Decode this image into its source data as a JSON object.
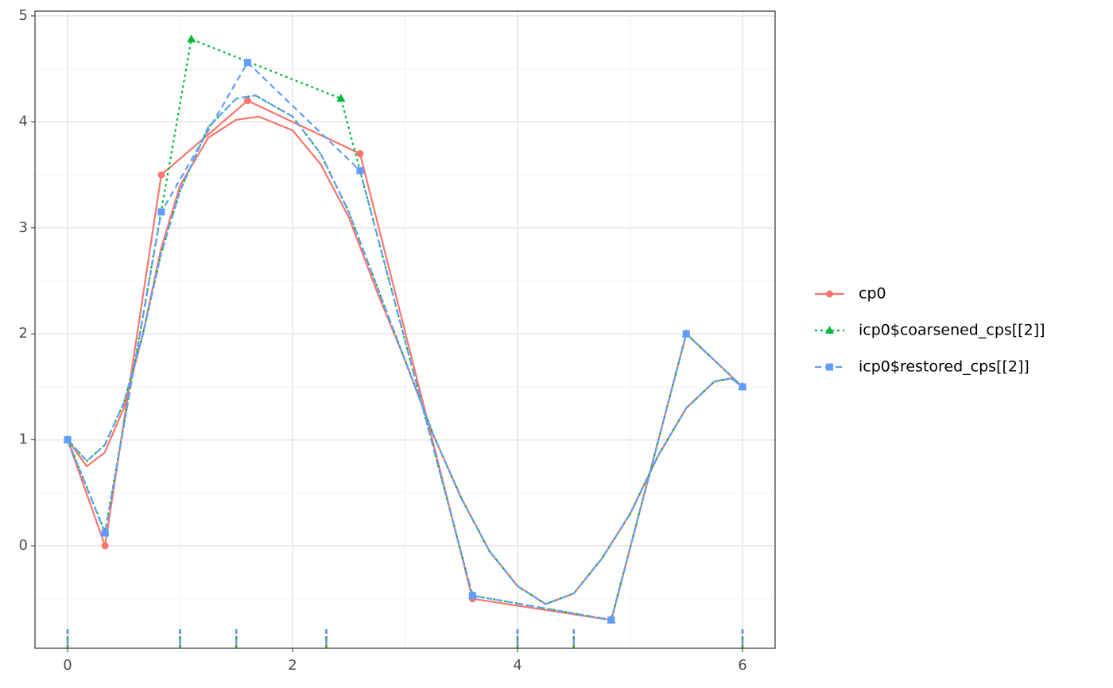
{
  "chart_data": {
    "type": "line",
    "xlim": [
      -0.29,
      6.29
    ],
    "ylim": [
      -0.967,
      5.045
    ],
    "xticks": [
      0,
      2,
      4,
      6
    ],
    "yticks": [
      0,
      1,
      2,
      3,
      4,
      5
    ],
    "minor_xticks": [
      1,
      3,
      5
    ],
    "minor_yticks": [
      -0.5,
      0.5,
      1.5,
      2.5,
      3.5,
      4.5
    ],
    "grid": true,
    "legend": "right",
    "series": [
      {
        "name": "cp0",
        "color": "#f8766d",
        "dash": "solid",
        "marker": "circle",
        "x": [
          0,
          0.333,
          0.833,
          1.6,
          2.6,
          3.6,
          4.833,
          5.5,
          6
        ],
        "values": [
          1,
          0,
          3.5,
          4.2,
          3.7,
          -0.5,
          -0.7,
          2,
          1.5
        ],
        "curve_x": [
          0,
          0.17,
          0.33,
          0.5,
          0.67,
          0.83,
          1.0,
          1.25,
          1.5,
          1.7,
          2.0,
          2.25,
          2.5,
          2.75,
          3.0,
          3.25,
          3.5,
          3.75,
          4.0,
          4.25,
          4.5,
          4.75,
          5.0,
          5.25,
          5.5,
          5.75,
          5.9,
          6
        ],
        "curve_values": [
          1,
          0.75,
          0.88,
          1.3,
          2.0,
          2.8,
          3.4,
          3.85,
          4.02,
          4.05,
          3.92,
          3.6,
          3.1,
          2.4,
          1.75,
          1.05,
          0.45,
          -0.05,
          -0.38,
          -0.55,
          -0.45,
          -0.12,
          0.3,
          0.85,
          1.3,
          1.55,
          1.58,
          1.5
        ],
        "knots": [
          0,
          1,
          1.5,
          2.3,
          4,
          4.5,
          6
        ]
      },
      {
        "name": "icp0$coarsened_cps[[2]]",
        "color": "#00ba38",
        "dash": "dotted",
        "marker": "triangle",
        "x": [
          0,
          0.333,
          1.1,
          2.43,
          3.6,
          4.833,
          5.5,
          6
        ],
        "values": [
          1,
          0.13,
          4.78,
          4.22,
          -0.47,
          -0.7,
          2,
          1.5
        ],
        "curve_x": [
          0,
          0.17,
          0.33,
          0.5,
          0.67,
          0.83,
          1.0,
          1.25,
          1.5,
          1.67,
          2.0,
          2.25,
          2.5,
          2.75,
          3.0,
          3.25,
          3.5,
          3.75,
          4.0,
          4.25,
          4.5,
          4.75,
          5.0,
          5.25,
          5.5,
          5.75,
          5.9,
          6
        ],
        "curve_values": [
          1,
          0.8,
          0.95,
          1.35,
          2.0,
          2.75,
          3.35,
          3.95,
          4.22,
          4.25,
          4.05,
          3.7,
          3.15,
          2.45,
          1.75,
          1.05,
          0.45,
          -0.05,
          -0.38,
          -0.55,
          -0.45,
          -0.12,
          0.3,
          0.85,
          1.3,
          1.55,
          1.58,
          1.5
        ],
        "knots": [
          0,
          1,
          1.5,
          2.3,
          4,
          4.5,
          6
        ]
      },
      {
        "name": "icp0$restored_cps[[2]]",
        "color": "#619cff",
        "dash": "dashed",
        "marker": "square",
        "x": [
          0,
          0.333,
          0.833,
          1.6,
          2.6,
          3.6,
          4.833,
          5.5,
          6
        ],
        "values": [
          1,
          0.12,
          3.15,
          4.56,
          3.54,
          -0.47,
          -0.7,
          2,
          1.5
        ],
        "curve_x": [
          0,
          0.17,
          0.33,
          0.5,
          0.67,
          0.83,
          1.0,
          1.25,
          1.5,
          1.67,
          2.0,
          2.25,
          2.5,
          2.75,
          3.0,
          3.25,
          3.5,
          3.75,
          4.0,
          4.25,
          4.5,
          4.75,
          5.0,
          5.25,
          5.5,
          5.75,
          5.9,
          6
        ],
        "curve_values": [
          1,
          0.8,
          0.95,
          1.35,
          2.0,
          2.75,
          3.35,
          3.95,
          4.22,
          4.25,
          4.05,
          3.7,
          3.15,
          2.45,
          1.75,
          1.05,
          0.45,
          -0.05,
          -0.38,
          -0.55,
          -0.45,
          -0.12,
          0.3,
          0.85,
          1.3,
          1.55,
          1.58,
          1.5
        ],
        "knots": [
          0,
          1,
          1.5,
          2.3,
          4,
          4.5,
          6
        ]
      }
    ]
  }
}
